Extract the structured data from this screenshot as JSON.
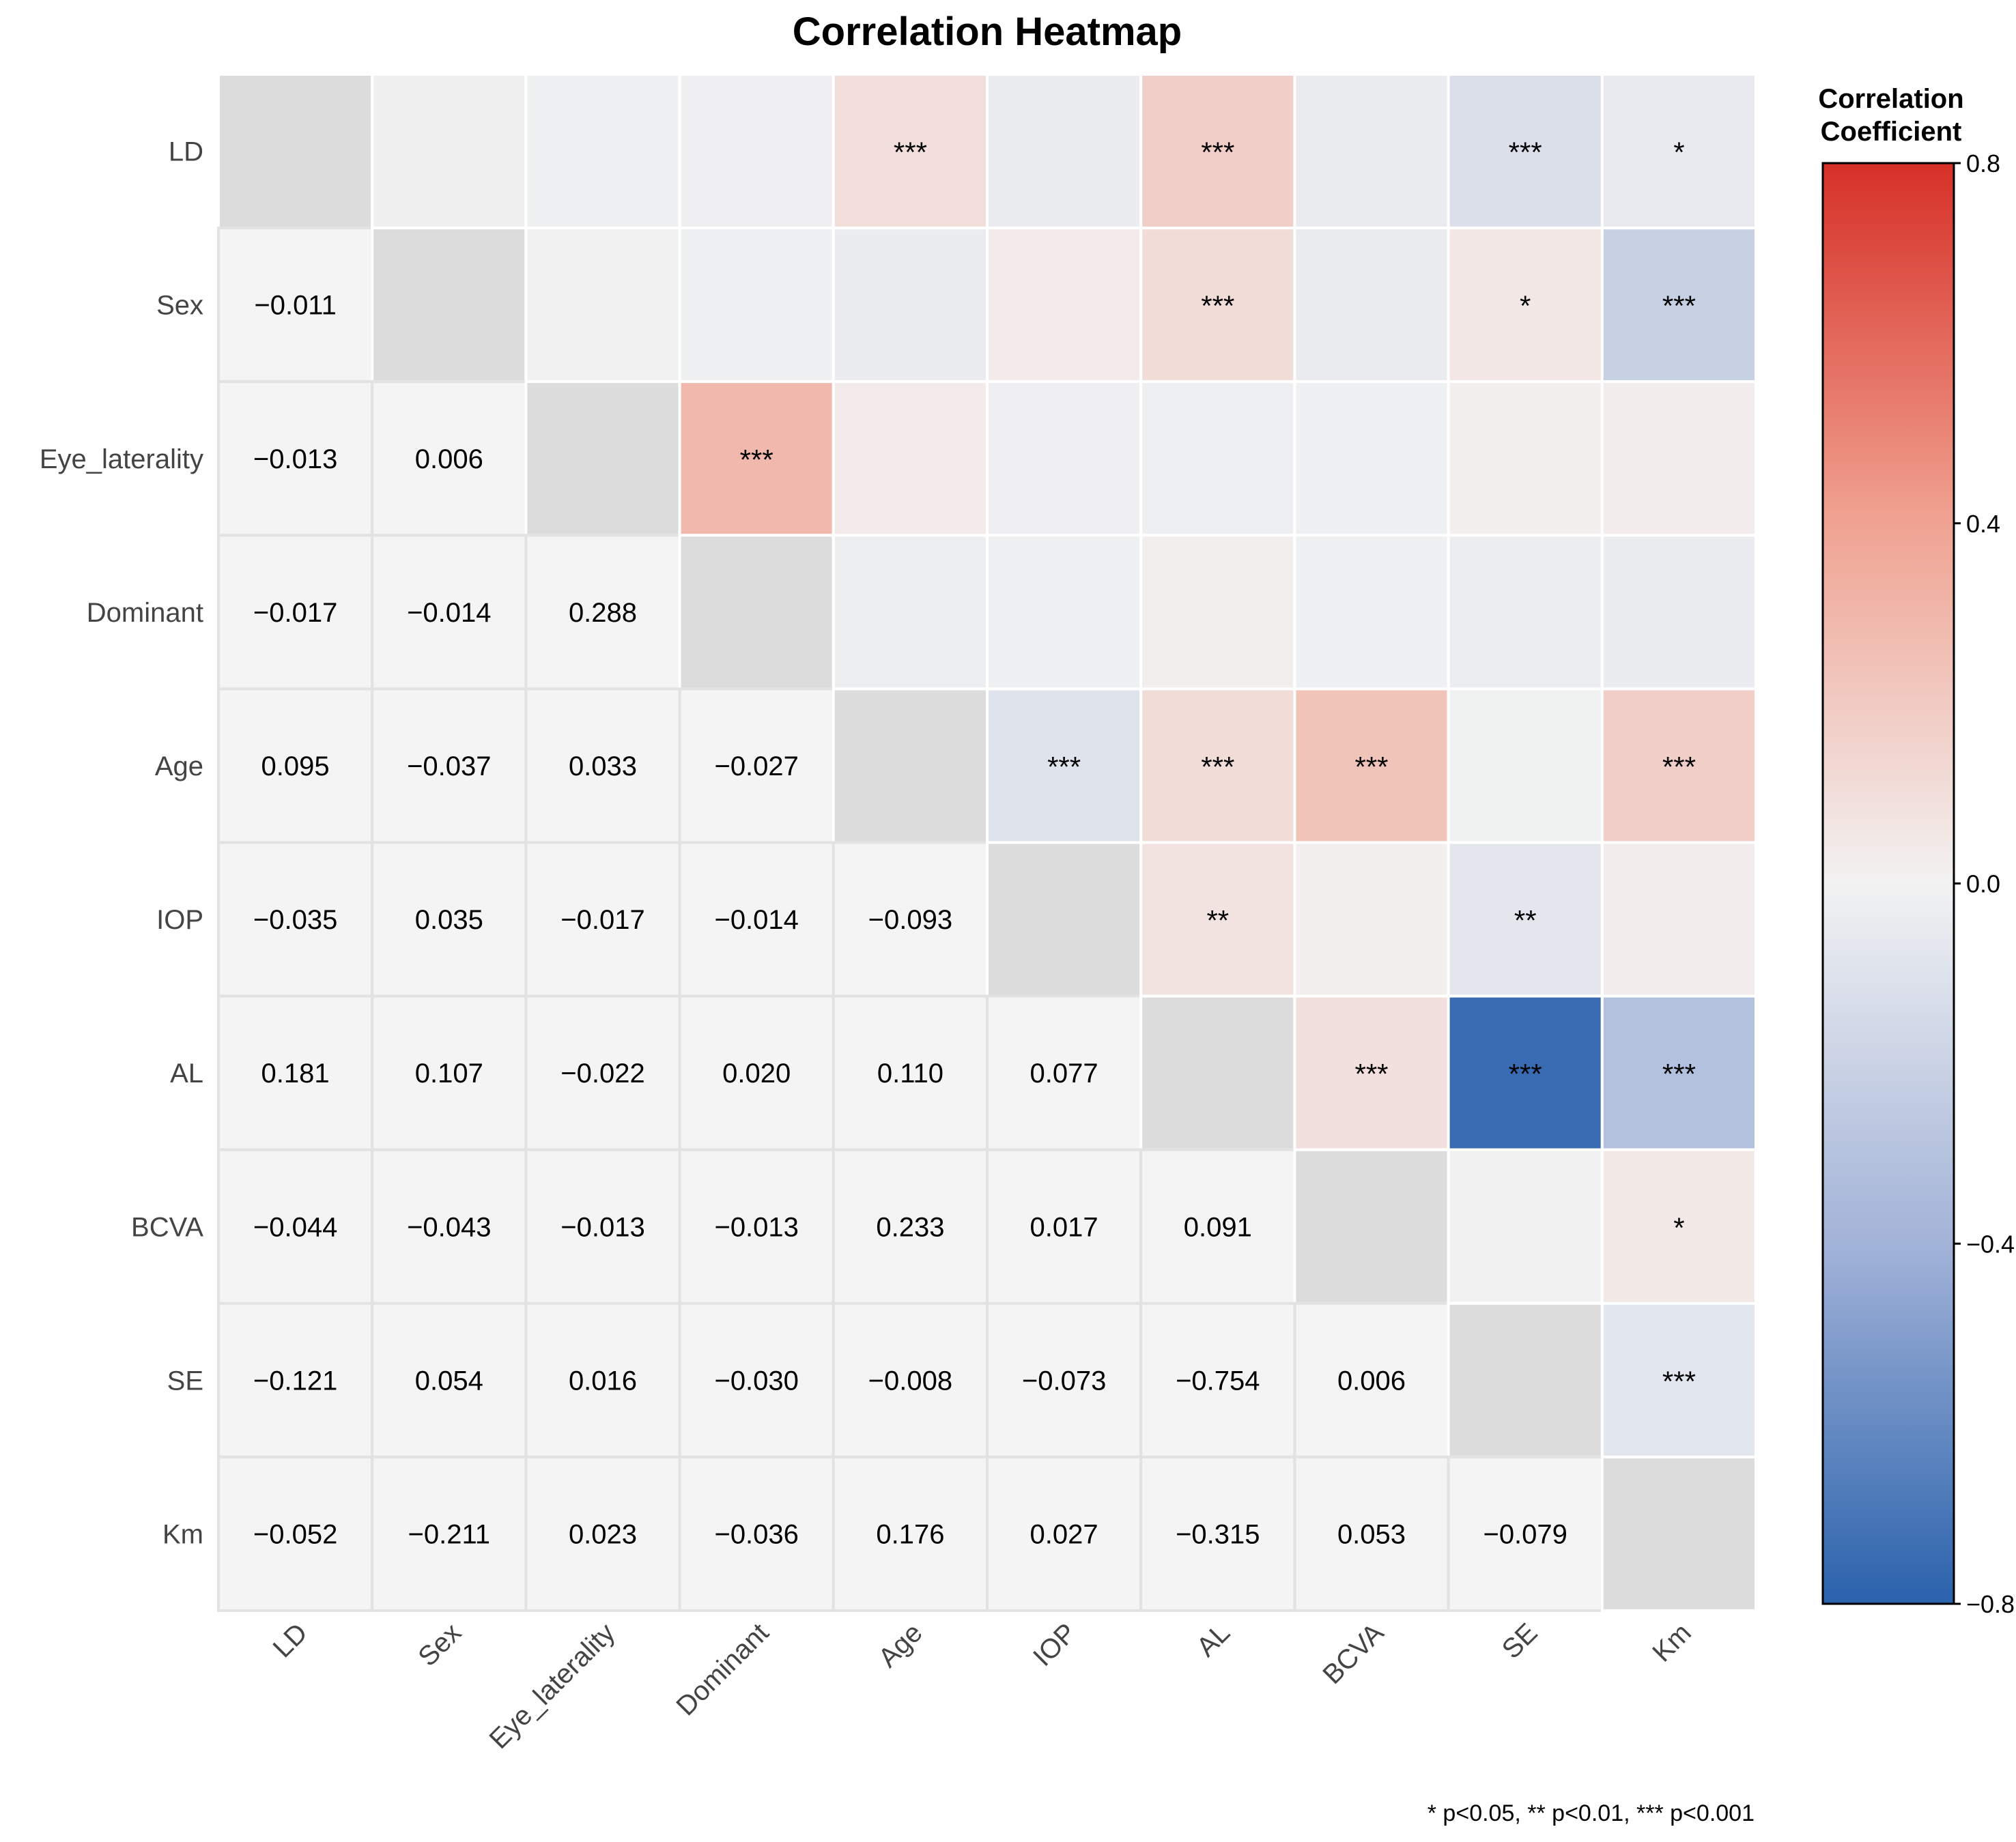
{
  "chart_data": {
    "type": "heatmap",
    "title": "Correlation Heatmap",
    "variables": [
      "LD",
      "Sex",
      "Eye_laterality",
      "Dominant",
      "Age",
      "IOP",
      "AL",
      "BCVA",
      "SE",
      "Km"
    ],
    "lower_triangle_values": [
      [],
      [
        -0.011
      ],
      [
        -0.013,
        0.006
      ],
      [
        -0.017,
        -0.014,
        0.288
      ],
      [
        0.095,
        -0.037,
        0.033,
        -0.027
      ],
      [
        -0.035,
        0.035,
        -0.017,
        -0.014,
        -0.093
      ],
      [
        0.181,
        0.107,
        -0.022,
        0.02,
        0.11,
        0.077
      ],
      [
        -0.044,
        -0.043,
        -0.013,
        -0.013,
        0.233,
        0.017,
        0.091
      ],
      [
        -0.121,
        0.054,
        0.016,
        -0.03,
        -0.008,
        -0.073,
        -0.754,
        0.006
      ],
      [
        -0.052,
        -0.211,
        0.023,
        -0.036,
        0.176,
        0.027,
        -0.315,
        0.053,
        -0.079
      ]
    ],
    "upper_triangle_significance": [
      [
        "",
        "",
        "",
        "***",
        "",
        "***",
        "",
        "***",
        "*"
      ],
      [
        "",
        "",
        "",
        "",
        "***",
        "",
        "*",
        "***"
      ],
      [
        "***",
        "",
        "",
        "",
        "",
        "",
        ""
      ],
      [
        "",
        "",
        "",
        "",
        "",
        ""
      ],
      [
        "***",
        "***",
        "***",
        "",
        "***"
      ],
      [
        "**",
        "",
        "**",
        ""
      ],
      [
        "***",
        "***",
        "***"
      ],
      [
        "",
        "*"
      ],
      [
        "***"
      ]
    ],
    "colorbar": {
      "title_line1": "Correlation",
      "title_line2": "Coefficient",
      "range": [
        -0.8,
        0.8
      ],
      "ticks": [
        "0.8",
        "0.4",
        "0.0",
        "−0.4",
        "−0.8"
      ],
      "tick_values": [
        0.8,
        0.4,
        0.0,
        -0.4,
        -0.8
      ],
      "colors": [
        "#2a62ac",
        "#a2b3d8",
        "#f2f2f2",
        "#f0a392",
        "#d63027"
      ]
    },
    "footnote": "* p<0.05, ** p<0.01, *** p<0.001",
    "diagonal_color": "#dcdcdc",
    "lower_cell_color": "#f4f4f4"
  }
}
